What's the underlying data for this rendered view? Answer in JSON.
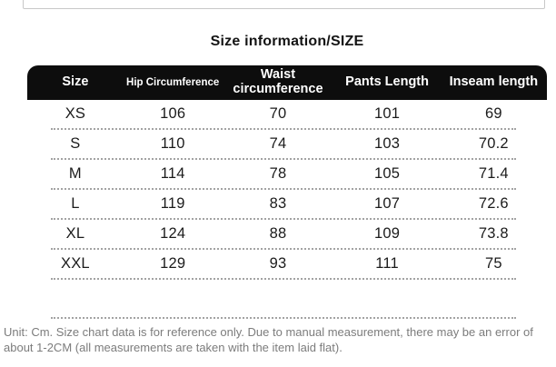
{
  "page": {
    "title": "Size information/SIZE",
    "footnote": {
      "line1": "Unit: Cm. Size chart data is for reference only. Due to manual measurement, there may be an error of",
      "line2": "about 1-2CM (all measurements are taken with the item laid flat)."
    }
  },
  "size_table": {
    "columns": [
      "Size",
      "Hip Circumference",
      "Waist circumference",
      "Pants Length",
      "Inseam length"
    ],
    "rows": [
      [
        "XS",
        "106",
        "70",
        "101",
        "69"
      ],
      [
        "S",
        "110",
        "74",
        "103",
        "70.2"
      ],
      [
        "M",
        "114",
        "78",
        "105",
        "71.4"
      ],
      [
        "L",
        "119",
        "83",
        "107",
        "72.6"
      ],
      [
        "XL",
        "124",
        "88",
        "109",
        "73.8"
      ],
      [
        "XXL",
        "129",
        "93",
        "111",
        "75"
      ]
    ]
  },
  "chart_data": {
    "type": "table",
    "title": "Size information/SIZE",
    "columns": [
      "Size",
      "Hip Circumference",
      "Waist circumference",
      "Pants Length",
      "Inseam length"
    ],
    "rows": [
      [
        "XS",
        106,
        70,
        101,
        69
      ],
      [
        "S",
        110,
        74,
        103,
        70.2
      ],
      [
        "M",
        114,
        78,
        105,
        71.4
      ],
      [
        "L",
        119,
        83,
        107,
        72.6
      ],
      [
        "XL",
        124,
        88,
        109,
        73.8
      ],
      [
        "XXL",
        129,
        93,
        111,
        75
      ]
    ],
    "unit": "Cm"
  },
  "colors": {
    "header_bg": "#0d0d0d",
    "header_text": "#ffffff",
    "body_text": "#1b1b1b",
    "separator": "#a3a3a3",
    "footnote_text": "#7c7c7c",
    "remnant_border": "#c8c8c8"
  }
}
